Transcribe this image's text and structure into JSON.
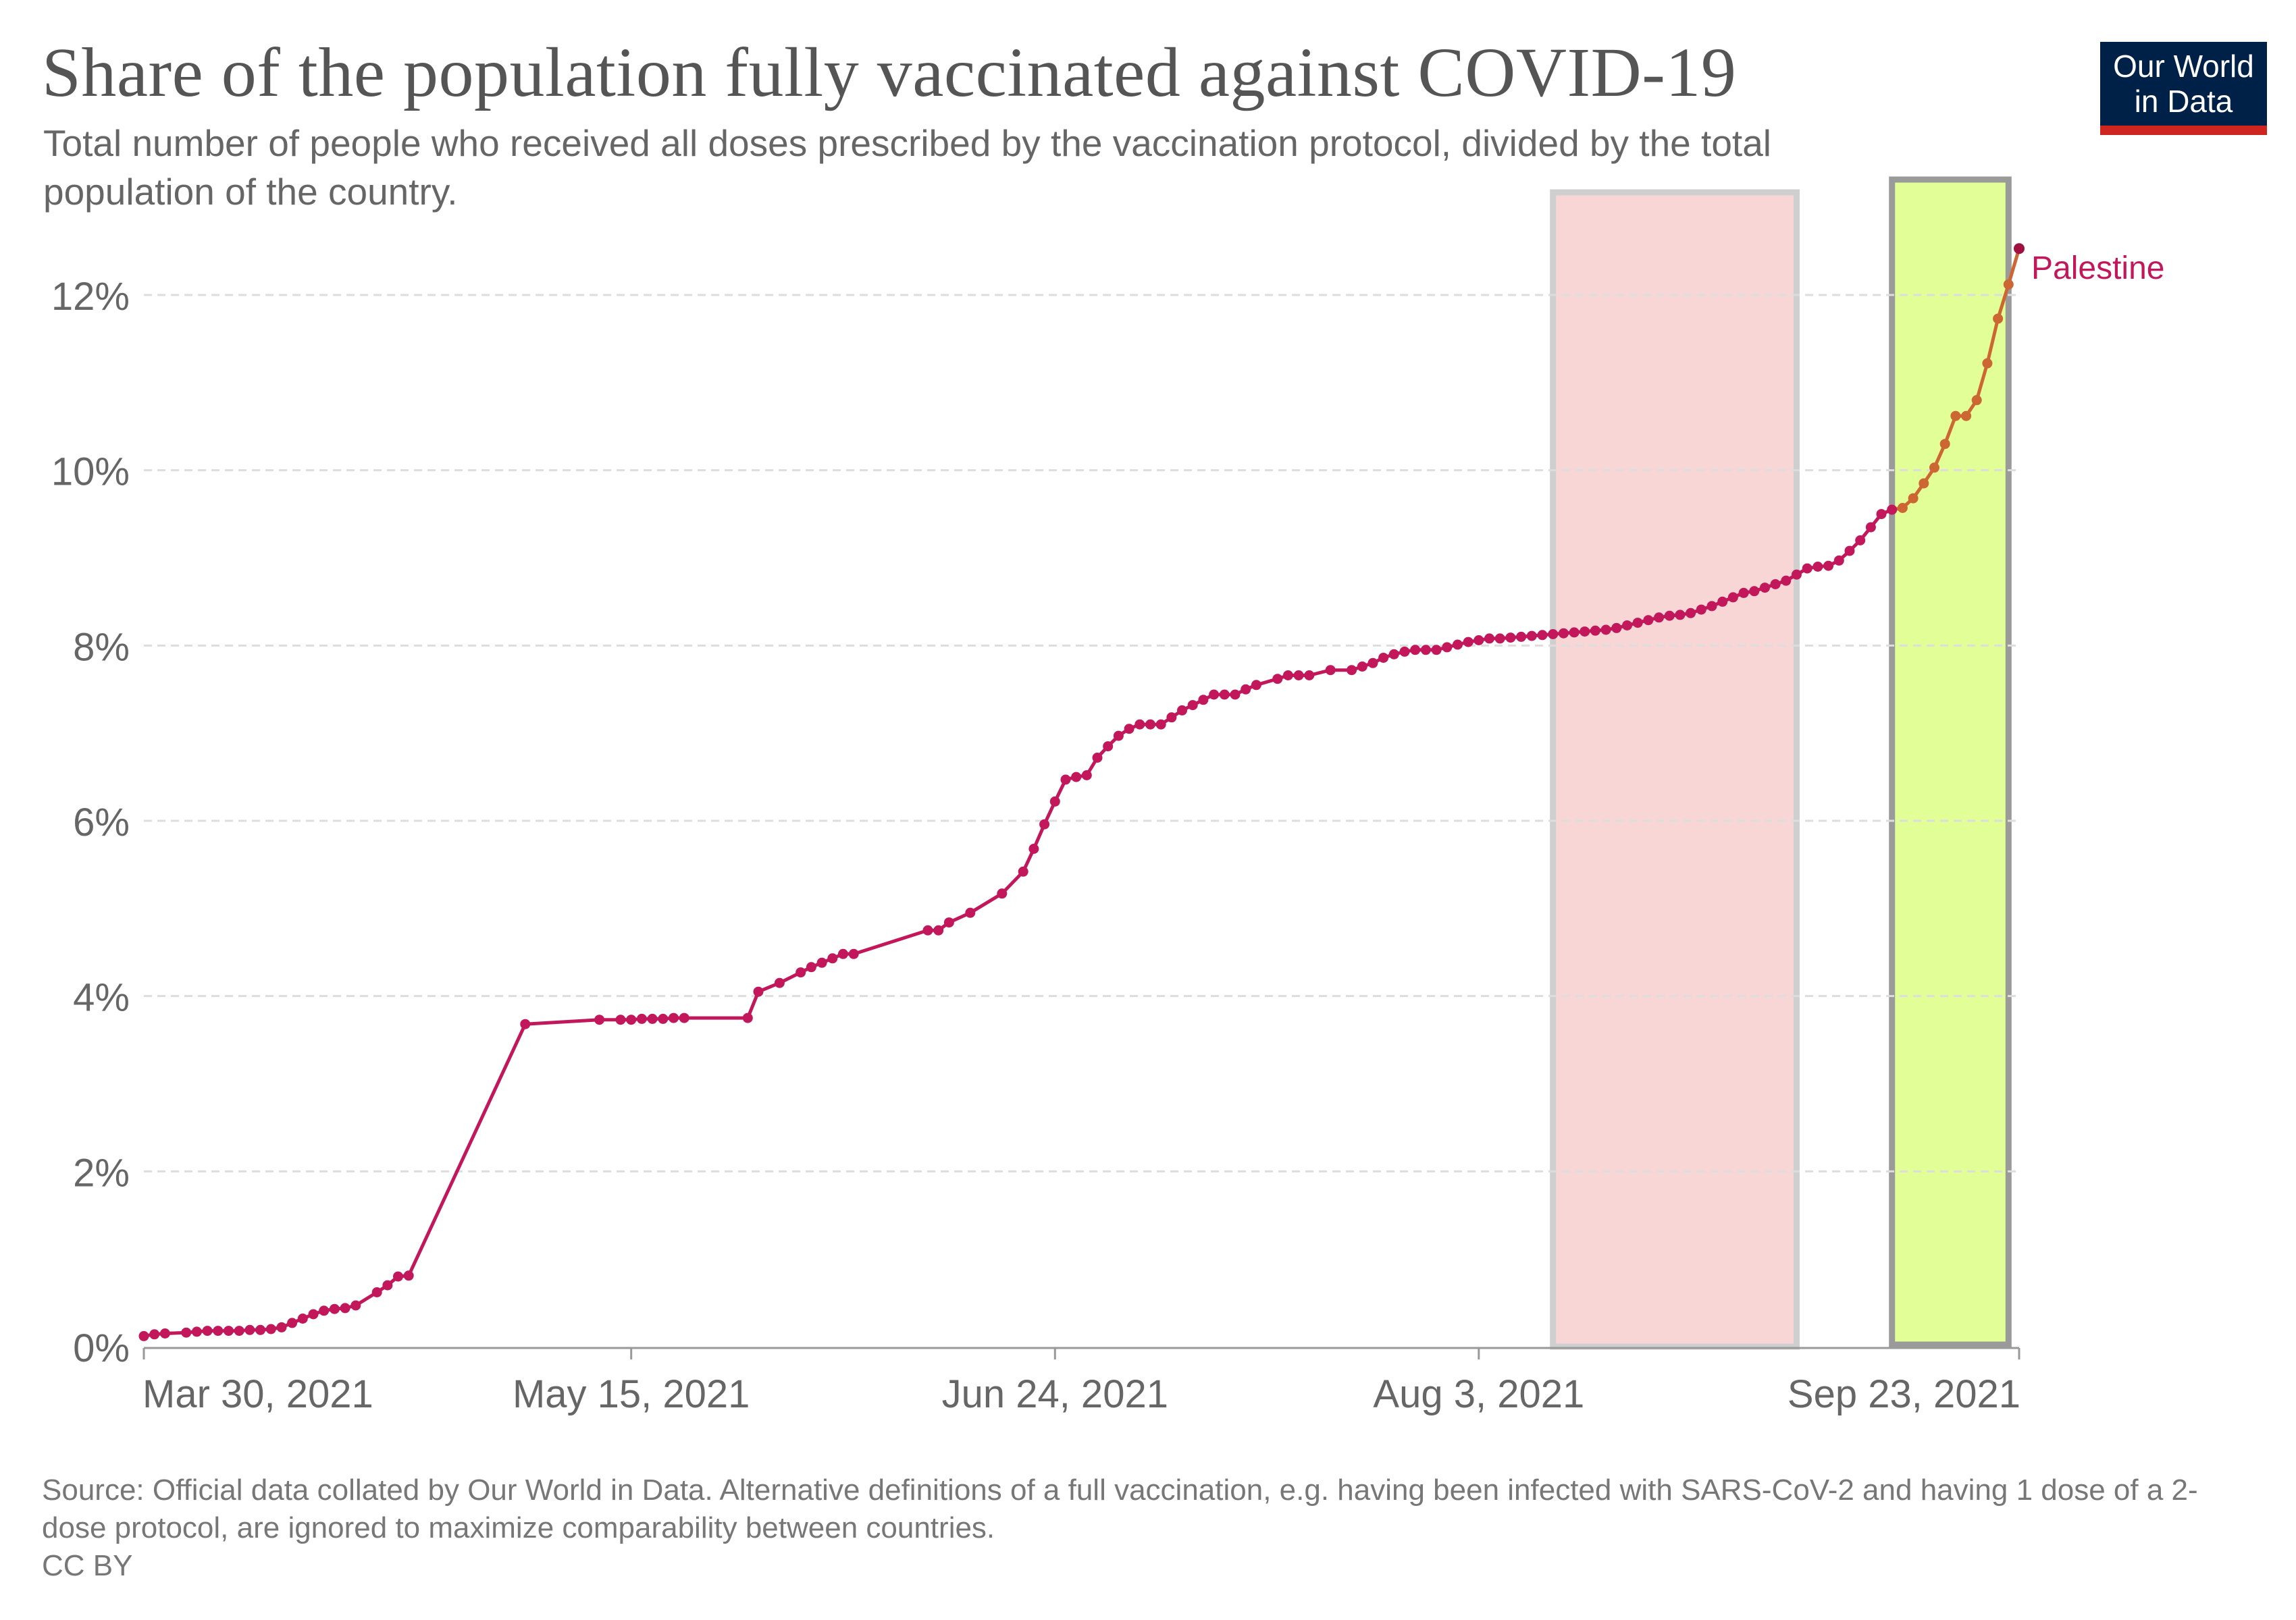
{
  "header": {
    "title": "Share of the population fully vaccinated against COVID-19",
    "subtitle": "Total number of people who received all doses prescribed by the vaccination protocol, divided by the total population of the country."
  },
  "logo": {
    "line1": "Our World",
    "line2": "in Data",
    "bg_color": "#002147",
    "accent_color": "#ce261e"
  },
  "footer": {
    "source": "Source: Official data collated by Our World in Data. Alternative definitions of a full vaccination, e.g. having been infected with SARS-CoV-2 and having 1 dose of a 2-dose protocol, are ignored to maximize comparability between countries.",
    "license": "CC BY"
  },
  "colors": {
    "series": "#c2185b",
    "highlight_series": "#cc6633",
    "pink_band": "#f8d6d6",
    "green_band": "#e2fe96"
  },
  "chart_data": {
    "type": "line",
    "title": "Share of the population fully vaccinated against COVID-19",
    "xlabel": "",
    "ylabel": "",
    "x_ticks": [
      "Mar 30, 2021",
      "May 15, 2021",
      "Jun 24, 2021",
      "Aug 3, 2021",
      "Sep 23, 2021"
    ],
    "y_ticks": [
      "0%",
      "2%",
      "4%",
      "6%",
      "8%",
      "10%",
      "12%"
    ],
    "ylim": [
      0,
      13
    ],
    "xlim": [
      "2021-03-30",
      "2021-09-23"
    ],
    "grid": "horizontal dashed",
    "highlight_bands": [
      {
        "name": "pink",
        "start": "2021-08-10",
        "end": "2021-09-02"
      },
      {
        "name": "green",
        "start": "2021-09-11",
        "end": "2021-09-22"
      }
    ],
    "series": [
      {
        "name": "Palestine",
        "points": [
          [
            "2021-03-30",
            0.12
          ],
          [
            "2021-03-31",
            0.14
          ],
          [
            "2021-04-01",
            0.15
          ],
          [
            "2021-04-03",
            0.16
          ],
          [
            "2021-04-04",
            0.17
          ],
          [
            "2021-04-05",
            0.18
          ],
          [
            "2021-04-06",
            0.18
          ],
          [
            "2021-04-07",
            0.18
          ],
          [
            "2021-04-08",
            0.18
          ],
          [
            "2021-04-09",
            0.19
          ],
          [
            "2021-04-10",
            0.19
          ],
          [
            "2021-04-11",
            0.2
          ],
          [
            "2021-04-12",
            0.22
          ],
          [
            "2021-04-13",
            0.27
          ],
          [
            "2021-04-14",
            0.32
          ],
          [
            "2021-04-15",
            0.37
          ],
          [
            "2021-04-16",
            0.41
          ],
          [
            "2021-04-17",
            0.43
          ],
          [
            "2021-04-18",
            0.44
          ],
          [
            "2021-04-19",
            0.47
          ],
          [
            "2021-04-21",
            0.62
          ],
          [
            "2021-04-22",
            0.7
          ],
          [
            "2021-04-23",
            0.8
          ],
          [
            "2021-04-24",
            0.81
          ],
          [
            "2021-05-05",
            3.68
          ],
          [
            "2021-05-12",
            3.73
          ],
          [
            "2021-05-14",
            3.73
          ],
          [
            "2021-05-15",
            3.73
          ],
          [
            "2021-05-16",
            3.74
          ],
          [
            "2021-05-17",
            3.74
          ],
          [
            "2021-05-18",
            3.74
          ],
          [
            "2021-05-19",
            3.75
          ],
          [
            "2021-05-20",
            3.75
          ],
          [
            "2021-05-26",
            3.75
          ],
          [
            "2021-05-27",
            4.05
          ],
          [
            "2021-05-29",
            4.15
          ],
          [
            "2021-05-31",
            4.27
          ],
          [
            "2021-06-01",
            4.33
          ],
          [
            "2021-06-02",
            4.38
          ],
          [
            "2021-06-03",
            4.43
          ],
          [
            "2021-06-04",
            4.48
          ],
          [
            "2021-06-05",
            4.48
          ],
          [
            "2021-06-12",
            4.75
          ],
          [
            "2021-06-13",
            4.75
          ],
          [
            "2021-06-14",
            4.84
          ],
          [
            "2021-06-16",
            4.95
          ],
          [
            "2021-06-19",
            5.17
          ],
          [
            "2021-06-21",
            5.42
          ],
          [
            "2021-06-22",
            5.68
          ],
          [
            "2021-06-23",
            5.96
          ],
          [
            "2021-06-24",
            6.22
          ],
          [
            "2021-06-25",
            6.47
          ],
          [
            "2021-06-26",
            6.5
          ],
          [
            "2021-06-27",
            6.52
          ],
          [
            "2021-06-28",
            6.72
          ],
          [
            "2021-06-29",
            6.85
          ],
          [
            "2021-06-30",
            6.97
          ],
          [
            "2021-07-01",
            7.05
          ],
          [
            "2021-07-02",
            7.1
          ],
          [
            "2021-07-03",
            7.1
          ],
          [
            "2021-07-04",
            7.1
          ],
          [
            "2021-07-05",
            7.18
          ],
          [
            "2021-07-06",
            7.26
          ],
          [
            "2021-07-07",
            7.32
          ],
          [
            "2021-07-08",
            7.38
          ],
          [
            "2021-07-09",
            7.44
          ],
          [
            "2021-07-10",
            7.44
          ],
          [
            "2021-07-11",
            7.44
          ],
          [
            "2021-07-12",
            7.5
          ],
          [
            "2021-07-13",
            7.55
          ],
          [
            "2021-07-15",
            7.62
          ],
          [
            "2021-07-16",
            7.66
          ],
          [
            "2021-07-17",
            7.66
          ],
          [
            "2021-07-18",
            7.66
          ],
          [
            "2021-07-20",
            7.72
          ],
          [
            "2021-07-22",
            7.72
          ],
          [
            "2021-07-23",
            7.76
          ],
          [
            "2021-07-24",
            7.8
          ],
          [
            "2021-07-25",
            7.86
          ],
          [
            "2021-07-26",
            7.9
          ],
          [
            "2021-07-27",
            7.93
          ],
          [
            "2021-07-28",
            7.95
          ],
          [
            "2021-07-29",
            7.95
          ],
          [
            "2021-07-30",
            7.95
          ],
          [
            "2021-07-31",
            7.98
          ],
          [
            "2021-08-01",
            8.01
          ],
          [
            "2021-08-02",
            8.04
          ],
          [
            "2021-08-03",
            8.06
          ],
          [
            "2021-08-04",
            8.08
          ],
          [
            "2021-08-05",
            8.08
          ],
          [
            "2021-08-06",
            8.09
          ],
          [
            "2021-08-07",
            8.1
          ],
          [
            "2021-08-08",
            8.11
          ],
          [
            "2021-08-09",
            8.12
          ],
          [
            "2021-08-10",
            8.13
          ],
          [
            "2021-08-11",
            8.14
          ],
          [
            "2021-08-12",
            8.15
          ],
          [
            "2021-08-13",
            8.16
          ],
          [
            "2021-08-14",
            8.17
          ],
          [
            "2021-08-15",
            8.18
          ],
          [
            "2021-08-16",
            8.2
          ],
          [
            "2021-08-17",
            8.23
          ],
          [
            "2021-08-18",
            8.26
          ],
          [
            "2021-08-19",
            8.29
          ],
          [
            "2021-08-20",
            8.32
          ],
          [
            "2021-08-21",
            8.34
          ],
          [
            "2021-08-22",
            8.35
          ],
          [
            "2021-08-23",
            8.37
          ],
          [
            "2021-08-24",
            8.41
          ],
          [
            "2021-08-25",
            8.45
          ],
          [
            "2021-08-26",
            8.5
          ],
          [
            "2021-08-27",
            8.55
          ],
          [
            "2021-08-28",
            8.6
          ],
          [
            "2021-08-29",
            8.62
          ],
          [
            "2021-08-30",
            8.66
          ],
          [
            "2021-08-31",
            8.7
          ],
          [
            "2021-09-01",
            8.74
          ],
          [
            "2021-09-02",
            8.81
          ],
          [
            "2021-09-03",
            8.88
          ],
          [
            "2021-09-04",
            8.9
          ],
          [
            "2021-09-05",
            8.91
          ],
          [
            "2021-09-06",
            8.97
          ],
          [
            "2021-09-07",
            9.08
          ],
          [
            "2021-09-08",
            9.2
          ],
          [
            "2021-09-09",
            9.35
          ],
          [
            "2021-09-10",
            9.5
          ],
          [
            "2021-09-11",
            9.55
          ],
          [
            "2021-09-12",
            9.57
          ],
          [
            "2021-09-13",
            9.68
          ],
          [
            "2021-09-14",
            9.85
          ],
          [
            "2021-09-15",
            10.03
          ],
          [
            "2021-09-16",
            10.3
          ],
          [
            "2021-09-17",
            10.62
          ],
          [
            "2021-09-18",
            10.62
          ],
          [
            "2021-09-19",
            10.8
          ],
          [
            "2021-09-20",
            11.22
          ],
          [
            "2021-09-21",
            11.73
          ],
          [
            "2021-09-22",
            12.12
          ],
          [
            "2021-09-23",
            12.53
          ]
        ]
      }
    ]
  }
}
